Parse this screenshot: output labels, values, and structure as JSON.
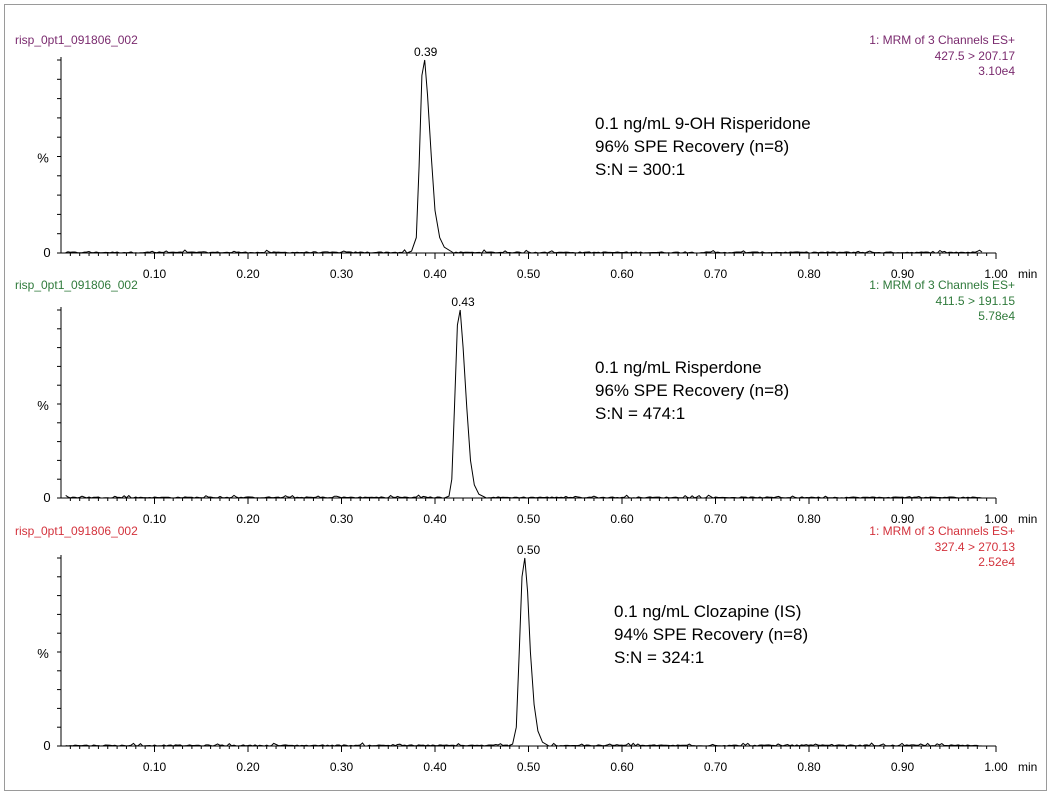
{
  "colors": {
    "panel1": "#7a2a6e",
    "panel2": "#2f7a3b",
    "panel3": "#d3323c",
    "trace": "#000000",
    "axis": "#000000"
  },
  "chart_data": [
    {
      "type": "line",
      "sample": "risp_0pt1_091806_002",
      "channel": "1: MRM of 3 Channels ES+",
      "transition": "427.5 > 207.17",
      "intensity": "3.10e4",
      "peak_label": "0.39",
      "ylabel": "%",
      "y_zero_label": "0",
      "x_unit": "min",
      "xlim": [
        0.0,
        1.0
      ],
      "x_ticks": [
        "0.10",
        "0.20",
        "0.30",
        "0.40",
        "0.50",
        "0.60",
        "0.70",
        "0.80",
        "0.90",
        "1.00"
      ],
      "annotation": [
        "0.1 ng/mL 9-OH Risperidone",
        "96% SPE Recovery (n=8)",
        "S:N = 300:1"
      ],
      "peak": {
        "rt": 0.39,
        "height": 100
      },
      "x": [
        0.37,
        0.375,
        0.38,
        0.383,
        0.386,
        0.389,
        0.392,
        0.396,
        0.4,
        0.405,
        0.41,
        0.42
      ],
      "y": [
        0,
        1,
        8,
        45,
        92,
        100,
        82,
        50,
        22,
        8,
        3,
        0
      ]
    },
    {
      "type": "line",
      "sample": "risp_0pt1_091806_002",
      "channel": "1: MRM of 3 Channels ES+",
      "transition": "411.5 > 191.15",
      "intensity": "5.78e4",
      "peak_label": "0.43",
      "ylabel": "%",
      "y_zero_label": "0",
      "x_unit": "min",
      "xlim": [
        0.0,
        1.0
      ],
      "x_ticks": [
        "0.10",
        "0.20",
        "0.30",
        "0.40",
        "0.50",
        "0.60",
        "0.70",
        "0.80",
        "0.90",
        "1.00"
      ],
      "annotation": [
        "0.1 ng/mL Risperdone",
        "96% SPE Recovery (n=8)",
        "S:N = 474:1"
      ],
      "peak": {
        "rt": 0.43,
        "height": 100
      },
      "x": [
        0.41,
        0.415,
        0.418,
        0.421,
        0.424,
        0.427,
        0.43,
        0.434,
        0.438,
        0.442,
        0.447,
        0.455
      ],
      "y": [
        0,
        1,
        10,
        50,
        92,
        100,
        80,
        48,
        20,
        7,
        2,
        0
      ]
    },
    {
      "type": "line",
      "sample": "risp_0pt1_091806_002",
      "channel": "1: MRM of 3 Channels ES+",
      "transition": "327.4 > 270.13",
      "intensity": "2.52e4",
      "peak_label": "0.50",
      "ylabel": "%",
      "y_zero_label": "0",
      "x_unit": "min",
      "xlim": [
        0.0,
        1.0
      ],
      "x_ticks": [
        "0.10",
        "0.20",
        "0.30",
        "0.40",
        "0.50",
        "0.60",
        "0.70",
        "0.80",
        "0.90",
        "1.00"
      ],
      "annotation": [
        "0.1 ng/mL Clozapine (IS)",
        "94% SPE Recovery (n=8)",
        "S:N = 324:1"
      ],
      "peak": {
        "rt": 0.5,
        "height": 100
      },
      "x": [
        0.478,
        0.483,
        0.487,
        0.49,
        0.493,
        0.496,
        0.499,
        0.502,
        0.506,
        0.51,
        0.515,
        0.522
      ],
      "y": [
        0,
        1,
        10,
        48,
        90,
        100,
        82,
        50,
        22,
        8,
        2,
        0
      ]
    }
  ]
}
